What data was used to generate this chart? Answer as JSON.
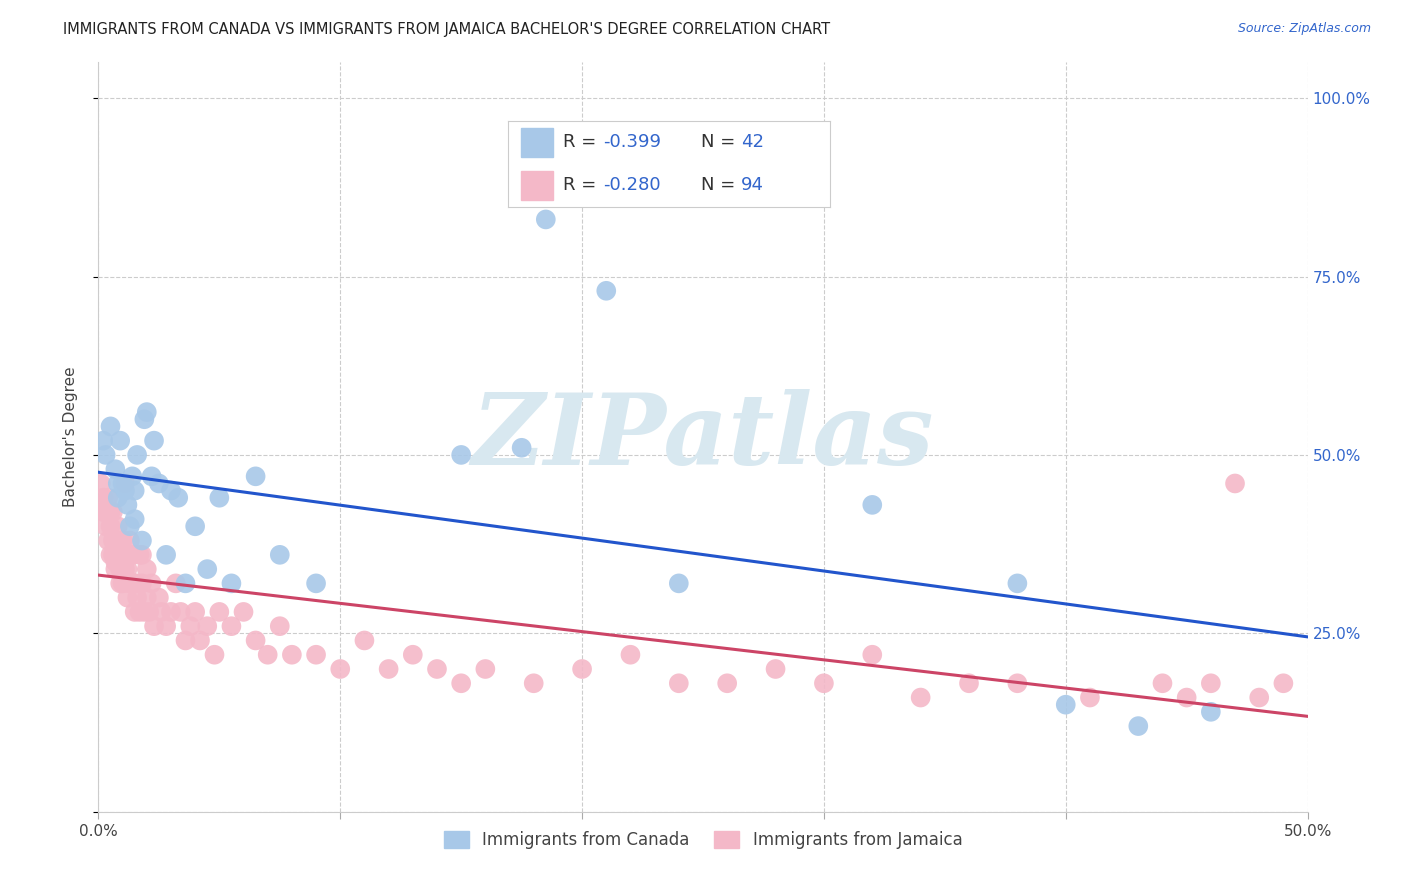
{
  "title": "IMMIGRANTS FROM CANADA VS IMMIGRANTS FROM JAMAICA BACHELOR'S DEGREE CORRELATION CHART",
  "source": "Source: ZipAtlas.com",
  "ylabel": "Bachelor's Degree",
  "xlim": [
    0.0,
    0.5
  ],
  "ylim": [
    0.0,
    1.05
  ],
  "xtick_positions": [
    0.0,
    0.1,
    0.2,
    0.3,
    0.4,
    0.5
  ],
  "xtick_labels": [
    "0.0%",
    "",
    "",
    "",
    "",
    "50.0%"
  ],
  "ytick_vals": [
    0.0,
    0.25,
    0.5,
    0.75,
    1.0
  ],
  "ytick_labels_right": [
    "",
    "25.0%",
    "50.0%",
    "75.0%",
    "100.0%"
  ],
  "canada_color": "#a8c8e8",
  "jamaica_color": "#f4b8c8",
  "canada_line_color": "#2255cc",
  "jamaica_line_color": "#cc4466",
  "legend_text_color": "#3366cc",
  "background_color": "#ffffff",
  "grid_color": "#cccccc",
  "watermark": "ZIPatlas",
  "title_fontsize": 10.5,
  "source_fontsize": 9,
  "canada_x": [
    0.002,
    0.003,
    0.005,
    0.007,
    0.008,
    0.008,
    0.009,
    0.01,
    0.011,
    0.012,
    0.013,
    0.014,
    0.015,
    0.015,
    0.016,
    0.018,
    0.019,
    0.02,
    0.022,
    0.023,
    0.025,
    0.028,
    0.03,
    0.033,
    0.036,
    0.04,
    0.045,
    0.05,
    0.055,
    0.065,
    0.075,
    0.09,
    0.15,
    0.175,
    0.185,
    0.21,
    0.24,
    0.32,
    0.38,
    0.4,
    0.43,
    0.46
  ],
  "canada_y": [
    0.52,
    0.5,
    0.54,
    0.48,
    0.46,
    0.44,
    0.52,
    0.46,
    0.45,
    0.43,
    0.4,
    0.47,
    0.45,
    0.41,
    0.5,
    0.38,
    0.55,
    0.56,
    0.47,
    0.52,
    0.46,
    0.36,
    0.45,
    0.44,
    0.32,
    0.4,
    0.34,
    0.44,
    0.32,
    0.47,
    0.36,
    0.32,
    0.5,
    0.51,
    0.83,
    0.73,
    0.32,
    0.43,
    0.32,
    0.15,
    0.12,
    0.14
  ],
  "jamaica_x": [
    0.001,
    0.002,
    0.002,
    0.003,
    0.003,
    0.004,
    0.004,
    0.004,
    0.005,
    0.005,
    0.005,
    0.006,
    0.006,
    0.006,
    0.007,
    0.007,
    0.007,
    0.008,
    0.008,
    0.008,
    0.009,
    0.009,
    0.009,
    0.01,
    0.01,
    0.01,
    0.011,
    0.011,
    0.012,
    0.012,
    0.012,
    0.013,
    0.013,
    0.014,
    0.014,
    0.015,
    0.015,
    0.016,
    0.016,
    0.017,
    0.017,
    0.018,
    0.018,
    0.019,
    0.02,
    0.02,
    0.021,
    0.022,
    0.023,
    0.025,
    0.026,
    0.028,
    0.03,
    0.032,
    0.034,
    0.036,
    0.038,
    0.04,
    0.042,
    0.045,
    0.048,
    0.05,
    0.055,
    0.06,
    0.065,
    0.07,
    0.075,
    0.08,
    0.09,
    0.1,
    0.11,
    0.12,
    0.13,
    0.14,
    0.15,
    0.16,
    0.18,
    0.2,
    0.22,
    0.24,
    0.26,
    0.28,
    0.3,
    0.32,
    0.34,
    0.36,
    0.38,
    0.41,
    0.44,
    0.45,
    0.46,
    0.47,
    0.48,
    0.49
  ],
  "jamaica_y": [
    0.46,
    0.44,
    0.42,
    0.42,
    0.4,
    0.44,
    0.38,
    0.42,
    0.4,
    0.36,
    0.42,
    0.38,
    0.36,
    0.42,
    0.35,
    0.38,
    0.34,
    0.38,
    0.36,
    0.4,
    0.34,
    0.32,
    0.38,
    0.36,
    0.32,
    0.38,
    0.34,
    0.46,
    0.34,
    0.3,
    0.36,
    0.32,
    0.38,
    0.32,
    0.36,
    0.32,
    0.28,
    0.3,
    0.32,
    0.36,
    0.28,
    0.36,
    0.32,
    0.28,
    0.3,
    0.34,
    0.28,
    0.32,
    0.26,
    0.3,
    0.28,
    0.26,
    0.28,
    0.32,
    0.28,
    0.24,
    0.26,
    0.28,
    0.24,
    0.26,
    0.22,
    0.28,
    0.26,
    0.28,
    0.24,
    0.22,
    0.26,
    0.22,
    0.22,
    0.2,
    0.24,
    0.2,
    0.22,
    0.2,
    0.18,
    0.2,
    0.18,
    0.2,
    0.22,
    0.18,
    0.18,
    0.2,
    0.18,
    0.22,
    0.16,
    0.18,
    0.18,
    0.16,
    0.18,
    0.16,
    0.18,
    0.46,
    0.16,
    0.18
  ]
}
